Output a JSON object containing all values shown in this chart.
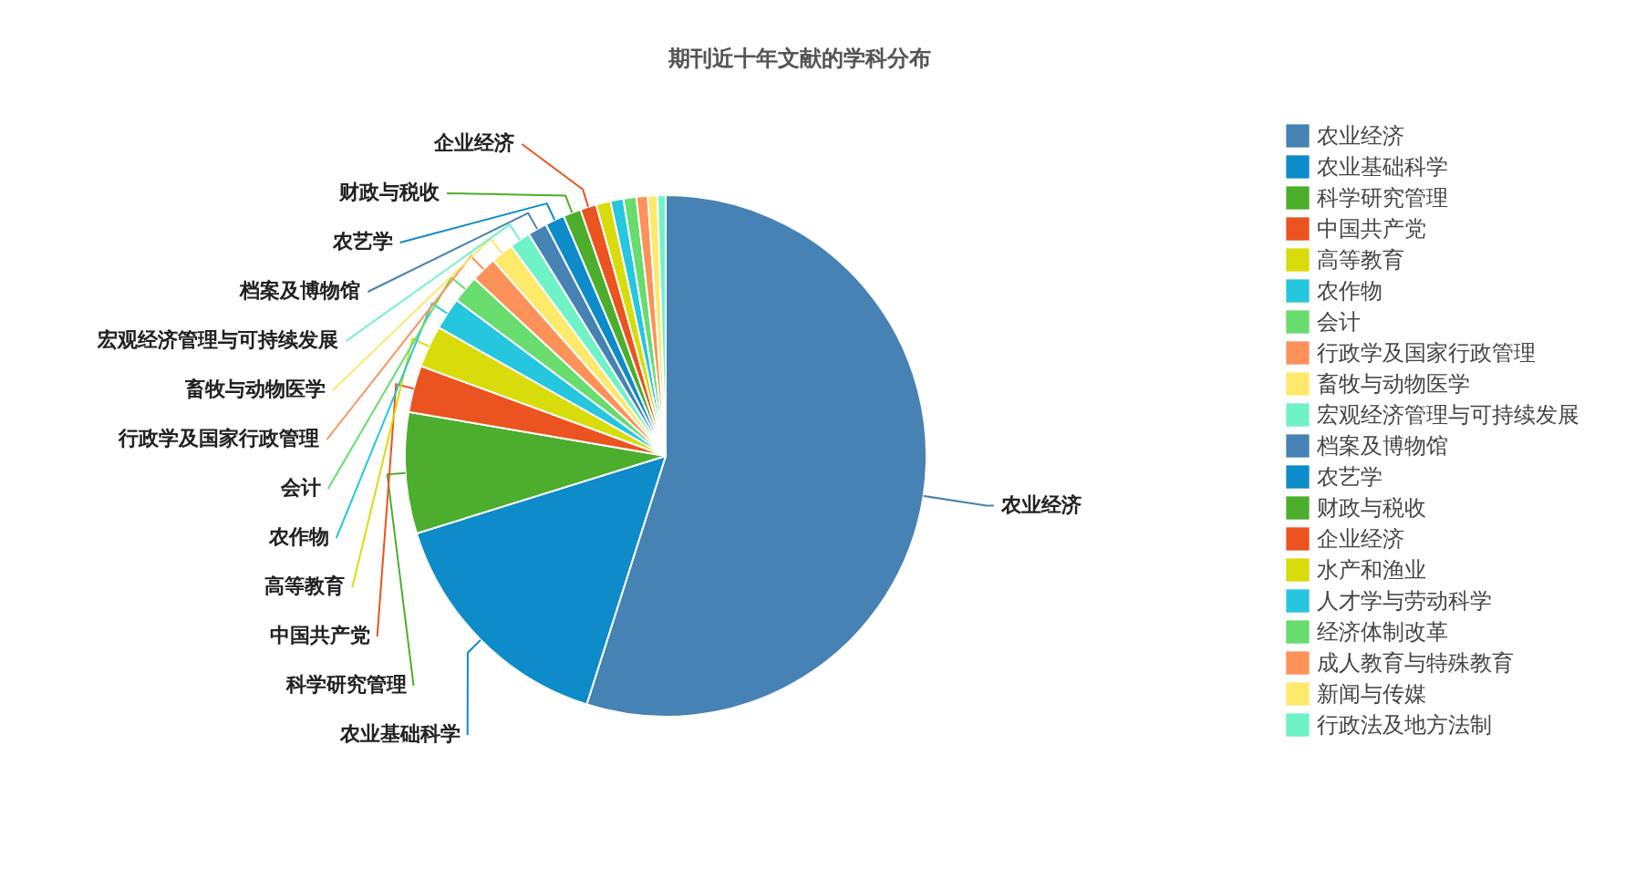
{
  "chart_data": {
    "type": "pie",
    "title": "期刊近十年文献的学科分布",
    "categories": [
      "农业经济",
      "农业基础科学",
      "科学研究管理",
      "中国共产党",
      "高等教育",
      "农作物",
      "会计",
      "行政学及国家行政管理",
      "畜牧与动物医学",
      "宏观经济管理与可持续发展",
      "档案及博物馆",
      "农艺学",
      "财政与税收",
      "企业经济",
      "水产和渔业",
      "人才学与劳动科学",
      "经济体制改革",
      "成人教育与特殊教育",
      "新闻与传媒",
      "行政法及地方法制"
    ],
    "values": [
      54.9,
      15.3,
      7.5,
      2.9,
      2.6,
      2.0,
      1.7,
      1.6,
      1.4,
      1.3,
      1.2,
      1.2,
      1.1,
      1.0,
      0.9,
      0.8,
      0.8,
      0.7,
      0.6,
      0.5
    ],
    "colors": [
      "#4682b4",
      "#0e8bc9",
      "#4cae2c",
      "#eb5320",
      "#d9dc0b",
      "#26c6de",
      "#68dc6c",
      "#fc925a",
      "#fde96a",
      "#6ff2c6",
      "#4682b4",
      "#0e8bc9",
      "#4cae2c",
      "#eb5320",
      "#d9dc0b",
      "#26c6de",
      "#68dc6c",
      "#fc925a",
      "#fde96a",
      "#6ff2c6"
    ],
    "value_labels": [
      "农业经济",
      "农业基础科学",
      "科学研究管理",
      "中国共产党",
      "高等教育",
      "农作物",
      "会计",
      "行政学及国家行政管理",
      "畜牧与动物医学",
      "宏观经济管理与可持续发展",
      "档案及博物馆",
      "农艺学",
      "财政与税收",
      "企业经济",
      null,
      null,
      null,
      null,
      null,
      null
    ],
    "legend": "right"
  }
}
